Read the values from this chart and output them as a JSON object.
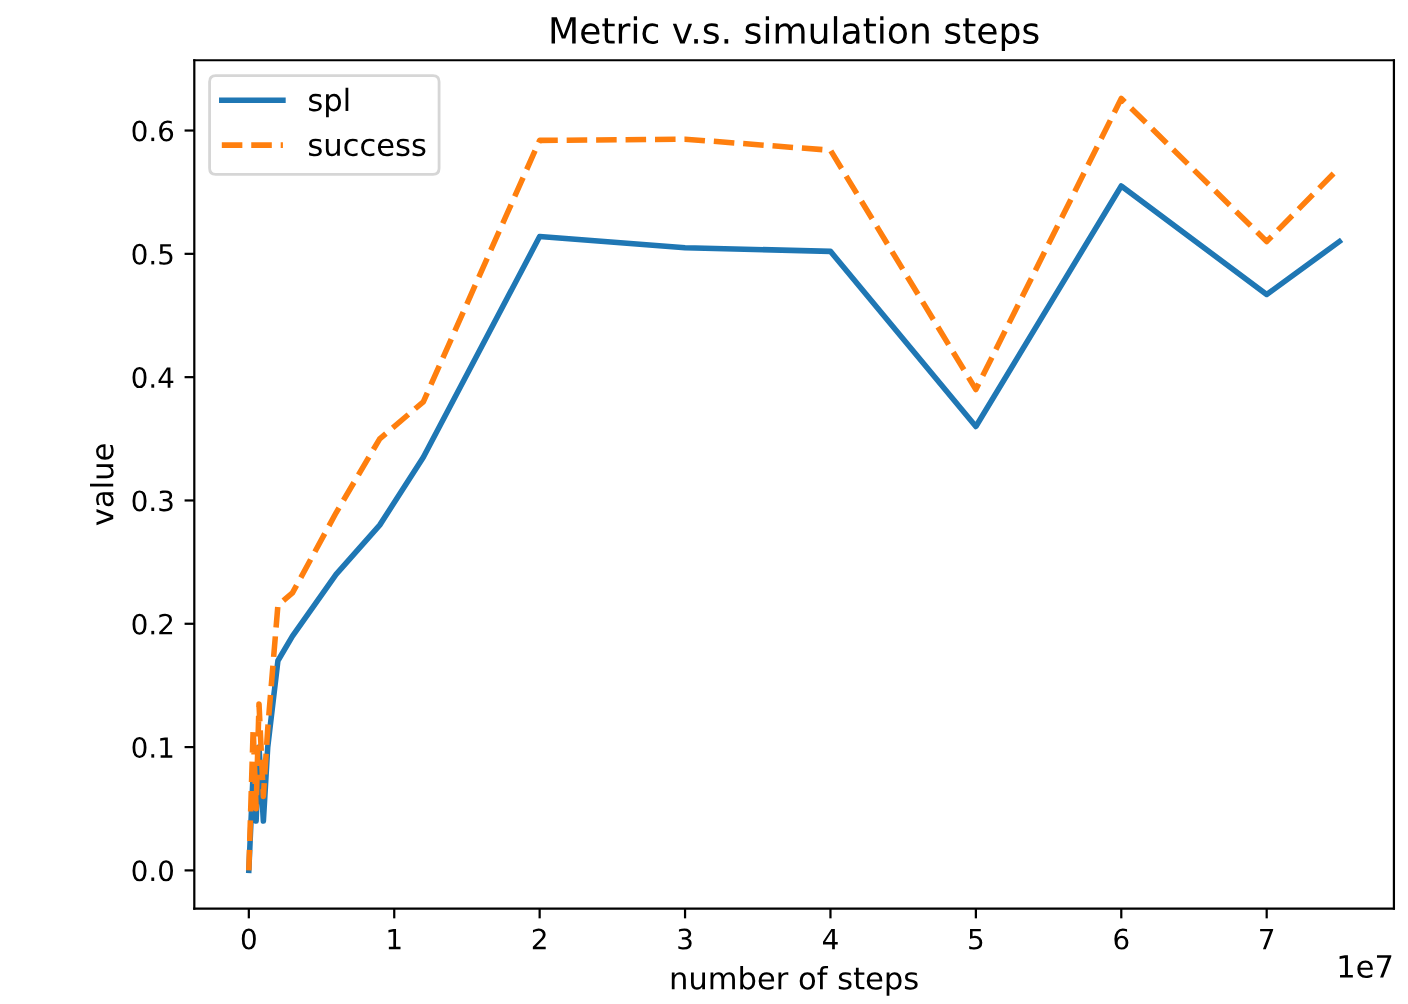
{
  "chart_data": {
    "type": "line",
    "title": "Metric v.s. simulation steps",
    "xlabel": "number of steps",
    "ylabel": "value",
    "annotations": [
      "1e7"
    ],
    "x": [
      0,
      0.03,
      0.05,
      0.07,
      0.1,
      0.13,
      0.2,
      0.3,
      0.6,
      0.9,
      1.2,
      2,
      3,
      4,
      5,
      6,
      7,
      7.5
    ],
    "series": [
      {
        "name": "spl",
        "color": "#1f77b4",
        "line_style": "solid",
        "values": [
          0.0,
          0.08,
          0.04,
          0.1,
          0.04,
          0.1,
          0.17,
          0.19,
          0.24,
          0.28,
          0.335,
          0.514,
          0.505,
          0.502,
          0.36,
          0.555,
          0.467,
          0.51
        ]
      },
      {
        "name": "success",
        "color": "#ff7f0e",
        "line_style": "dashed",
        "values": [
          0.0,
          0.115,
          0.05,
          0.135,
          0.06,
          0.115,
          0.215,
          0.225,
          0.29,
          0.35,
          0.38,
          0.592,
          0.593,
          0.584,
          0.39,
          0.626,
          0.51,
          0.57
        ]
      }
    ],
    "xlim": [
      -0.375,
      7.875
    ],
    "xticks": [
      0,
      1,
      2,
      3,
      4,
      5,
      6,
      7
    ],
    "ylim": [
      -0.031,
      0.657
    ],
    "yticks": [
      {
        "value": 0,
        "label": "0.0"
      },
      {
        "value": 0.1,
        "label": "0.1"
      },
      {
        "value": 0.2,
        "label": "0.2"
      },
      {
        "value": 0.3,
        "label": "0.3"
      },
      {
        "value": 0.4,
        "label": "0.4"
      },
      {
        "value": 0.5,
        "label": "0.5"
      },
      {
        "value": 0.6,
        "label": "0.6"
      }
    ],
    "grid": false,
    "legend": "top left",
    "marker": "none"
  }
}
